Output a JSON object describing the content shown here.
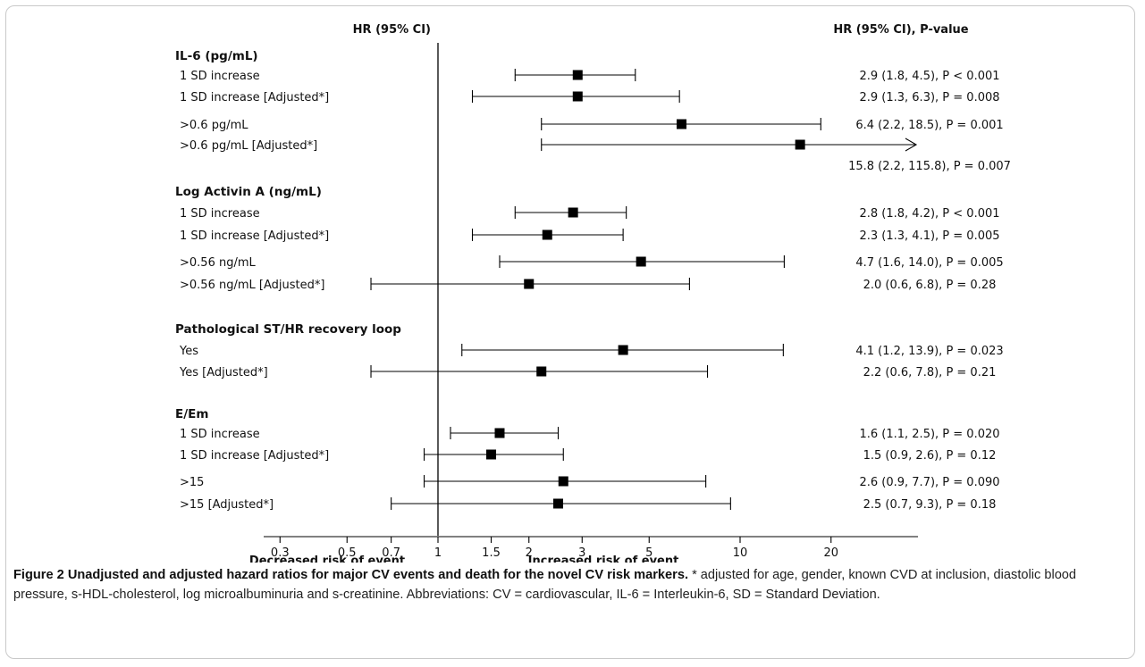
{
  "chart_data": {
    "type": "forest",
    "scale": "log",
    "headers": {
      "left": "HR (95% CI)",
      "right": "HR (95% CI), P-value"
    },
    "x_ticks": [
      "0.3",
      "0.5",
      "0.7",
      "1",
      "1.5",
      "2",
      "3",
      "5",
      "10",
      "20"
    ],
    "x_tick_values": [
      0.3,
      0.5,
      0.7,
      1,
      1.5,
      2,
      3,
      5,
      10,
      20
    ],
    "reference_value": 1,
    "direction_labels": {
      "left": "Decreased risk of event",
      "right": "Increased risk of event"
    },
    "groups": [
      {
        "title": "IL-6 (pg/mL)",
        "rows": [
          {
            "label": "1 SD increase",
            "hr": 2.9,
            "lo": 1.8,
            "hi": 4.5,
            "result": "2.9  (1.8,  4.5),   P < 0.001"
          },
          {
            "label": "1 SD increase [Adjusted*]",
            "hr": 2.9,
            "lo": 1.3,
            "hi": 6.3,
            "result": "2.9  (1.3,  6.3),   P = 0.008"
          },
          {
            "label": ">0.6 pg/mL",
            "hr": 6.4,
            "lo": 2.2,
            "hi": 18.5,
            "result": "6.4  (2.2, 18.5),   P = 0.001"
          },
          {
            "label": ">0.6 pg/mL [Adjusted*]",
            "hr": 15.8,
            "lo": 2.2,
            "hi": 115.8,
            "arrow": true,
            "result": "15.8  (2.2, 115.8), P = 0.007"
          }
        ]
      },
      {
        "title": "Log Activin A (ng/mL)",
        "rows": [
          {
            "label": "1 SD increase",
            "hr": 2.8,
            "lo": 1.8,
            "hi": 4.2,
            "result": "2.8  (1.8,  4.2),   P < 0.001"
          },
          {
            "label": "1 SD increase [Adjusted*]",
            "hr": 2.3,
            "lo": 1.3,
            "hi": 4.1,
            "result": "2.3  (1.3,  4.1),   P = 0.005"
          },
          {
            "label": ">0.56 ng/mL",
            "hr": 4.7,
            "lo": 1.6,
            "hi": 14.0,
            "result": "4.7  (1.6, 14.0),   P = 0.005"
          },
          {
            "label": ">0.56 ng/mL [Adjusted*]",
            "hr": 2.0,
            "lo": 0.6,
            "hi": 6.8,
            "result": "2.0  (0.6,  6.8),   P = 0.28"
          }
        ]
      },
      {
        "title": "Pathological ST/HR recovery loop",
        "rows": [
          {
            "label": "Yes",
            "hr": 4.1,
            "lo": 1.2,
            "hi": 13.9,
            "result": "4.1  (1.2, 13.9),   P = 0.023"
          },
          {
            "label": "Yes [Adjusted*]",
            "hr": 2.2,
            "lo": 0.6,
            "hi": 7.8,
            "result": "2.2  (0.6,  7.8),   P = 0.21"
          }
        ]
      },
      {
        "title": "E/Em",
        "rows": [
          {
            "label": "1 SD increase",
            "hr": 1.6,
            "lo": 1.1,
            "hi": 2.5,
            "result": "1.6  (1.1,  2.5),   P = 0.020"
          },
          {
            "label": "1 SD increase [Adjusted*]",
            "hr": 1.5,
            "lo": 0.9,
            "hi": 2.6,
            "result": "1.5  (0.9,  2.6),   P = 0.12"
          },
          {
            "label": ">15",
            "hr": 2.6,
            "lo": 0.9,
            "hi": 7.7,
            "result": "2.6  (0.9,  7.7),   P = 0.090"
          },
          {
            "label": ">15 [Adjusted*]",
            "hr": 2.5,
            "lo": 0.7,
            "hi": 9.3,
            "result": "2.5  (0.7,  9.3),   P = 0.18"
          }
        ]
      }
    ]
  },
  "caption": {
    "title": "Figure 2 Unadjusted and adjusted hazard ratios for major CV events and death for the novel CV risk markers.",
    "body": " * adjusted for age, gender, known CVD at inclusion, diastolic blood pressure, s-HDL-cholesterol, log microalbuminuria and s-creatinine. Abbreviations: CV = cardiovascular, IL-6 = Interleukin-6, SD = Standard Deviation."
  }
}
